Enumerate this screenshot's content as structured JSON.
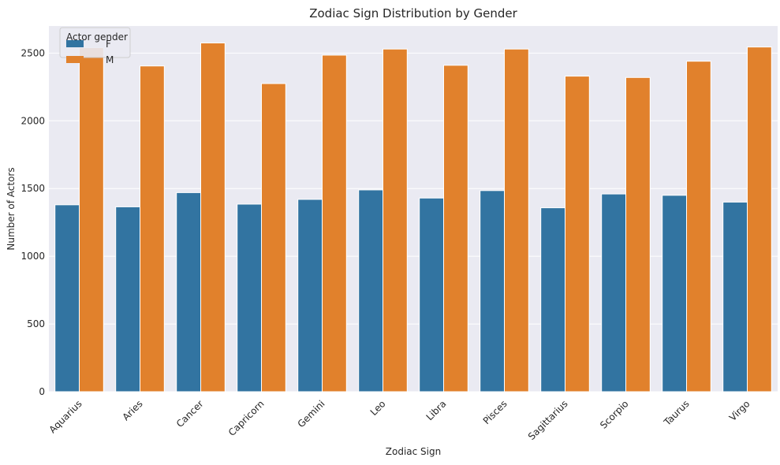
{
  "chart_data": {
    "type": "bar",
    "title": "Zodiac Sign Distribution by Gender",
    "xlabel": "Zodiac Sign",
    "ylabel": "Number of Actors",
    "categories": [
      "Aquarius",
      "Aries",
      "Cancer",
      "Capricorn",
      "Gemini",
      "Leo",
      "Libra",
      "Pisces",
      "Sagittarius",
      "Scorpio",
      "Taurus",
      "Virgo"
    ],
    "series": [
      {
        "name": "F",
        "color": "#3274a1",
        "values": [
          1380,
          1365,
          1470,
          1385,
          1420,
          1490,
          1430,
          1485,
          1358,
          1460,
          1450,
          1400
        ]
      },
      {
        "name": "M",
        "color": "#e1812c",
        "values": [
          2540,
          2405,
          2575,
          2275,
          2485,
          2530,
          2410,
          2530,
          2330,
          2320,
          2440,
          2545
        ]
      }
    ],
    "ylim": [
      0,
      2700
    ],
    "yticks": [
      0,
      500,
      1000,
      1500,
      2000,
      2500
    ],
    "legend": {
      "title": "Actor gender",
      "position": "top-left"
    },
    "grid": true,
    "background": "#eaeaf2"
  }
}
